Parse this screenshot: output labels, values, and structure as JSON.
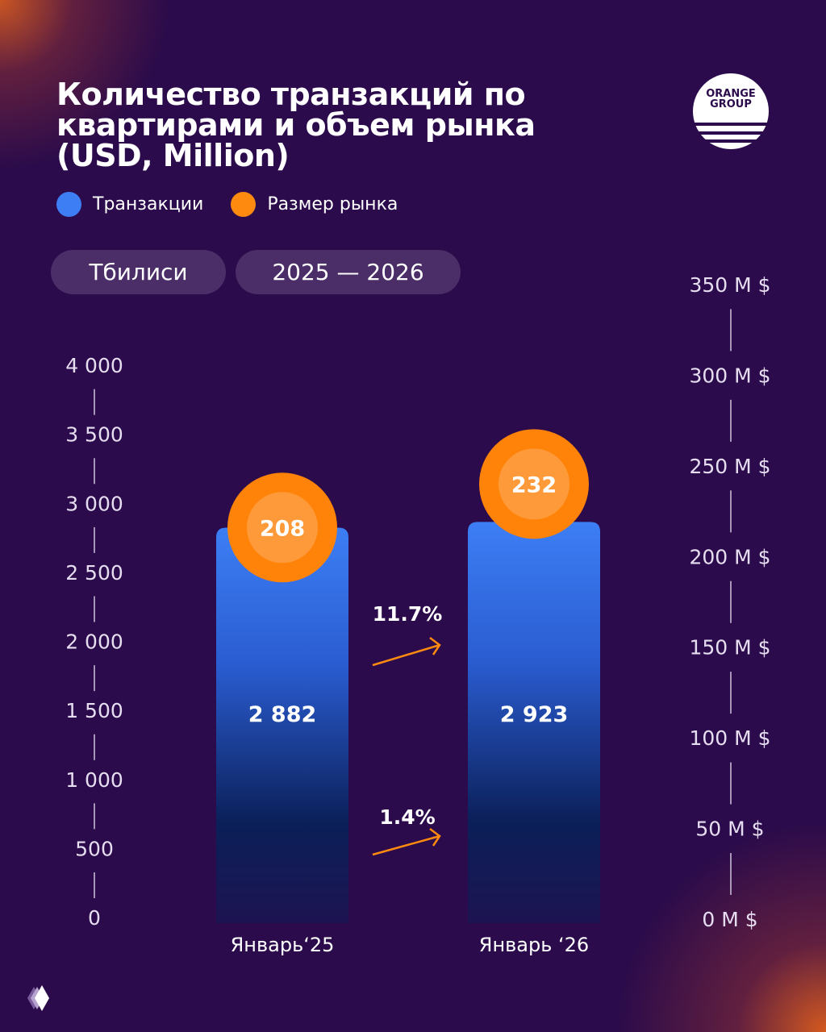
{
  "title": "Количество транзакций по квартирами и объем рынка (USD, Million)",
  "legend": [
    {
      "label": "Транзакции",
      "color": "#3d7ef5"
    },
    {
      "label": "Размер рынка",
      "color": "#ff8a10"
    }
  ],
  "filters": {
    "city": "Тбилиси",
    "period": "2025 — 2026"
  },
  "logo": {
    "text": "ORANGE GROUP"
  },
  "colors": {
    "background": "#2b0b4b",
    "bar_top": "#3d7ef5",
    "bar_bottom": "#1a1450",
    "marker": "#ff8a10",
    "arrow": "#ff8a10"
  },
  "chart_data": {
    "type": "bar",
    "title": "Количество транзакций по квартирами и объем рынка (USD, Million)",
    "categories": [
      "Январь‘25",
      "Январь ‘26"
    ],
    "series": [
      {
        "name": "Транзакции",
        "values": [
          2882,
          2923
        ],
        "labels": [
          "2 882",
          "2 923"
        ],
        "axis": "left"
      },
      {
        "name": "Размер рынка",
        "values": [
          208,
          232
        ],
        "labels": [
          "208",
          "232"
        ],
        "axis": "right",
        "mark": "circle"
      }
    ],
    "left_axis": {
      "ylim": [
        0,
        4000
      ],
      "ticks": [
        "0",
        "500",
        "1 000",
        "1 500",
        "2 000",
        "2 500",
        "3 000",
        "3 500",
        "4 000"
      ]
    },
    "right_axis": {
      "ylim": [
        0,
        350
      ],
      "ticks": [
        "0 M $",
        "50 M $",
        "100 M $",
        "150 M $",
        "200 M $",
        "250 M $",
        "300 M $",
        "350 M $"
      ]
    },
    "annotations": [
      {
        "text": "11.7%",
        "refers_to": "Размер рынка"
      },
      {
        "text": "1.4%",
        "refers_to": "Транзакции"
      }
    ],
    "grid": false,
    "legend_position": "top-left"
  }
}
